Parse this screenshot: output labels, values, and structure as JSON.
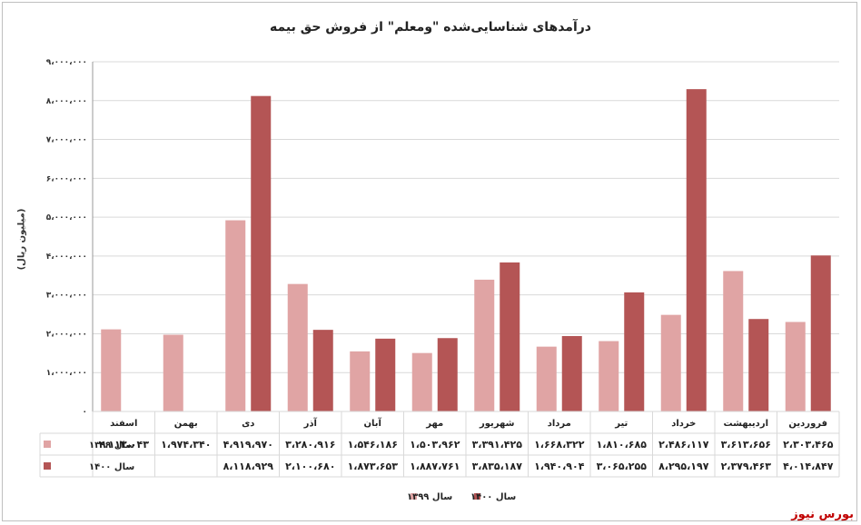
{
  "title": "درآمدهای شناسایی‌شده \"ومعلم\" از فروش حق بیمه",
  "brand": "بورس نیوز",
  "colors": {
    "s1399": "#e0a4a4",
    "s1400": "#b45555",
    "grid": "#d9d9d9",
    "axis": "#999999"
  },
  "chart_data": {
    "type": "bar",
    "title": "درآمدهای شناسایی‌شده \"ومعلم\" از فروش حق بیمه",
    "ylabel": "(میلیون ریال)",
    "xlabel": "",
    "ylim": [
      0,
      9000000
    ],
    "yticks": [
      0,
      1000000,
      2000000,
      3000000,
      4000000,
      5000000,
      6000000,
      7000000,
      8000000,
      9000000
    ],
    "ytick_labels": [
      "۰",
      "۱،۰۰۰،۰۰۰",
      "۲،۰۰۰،۰۰۰",
      "۳،۰۰۰،۰۰۰",
      "۴،۰۰۰،۰۰۰",
      "۵،۰۰۰،۰۰۰",
      "۶،۰۰۰،۰۰۰",
      "۷،۰۰۰،۰۰۰",
      "۸،۰۰۰،۰۰۰",
      "۹،۰۰۰،۰۰۰"
    ],
    "grid": true,
    "legend": "bottom",
    "categories": [
      "فروردین",
      "اردیبهشت",
      "خرداد",
      "تیر",
      "مرداد",
      "شهریور",
      "مهر",
      "آبان",
      "آذر",
      "دی",
      "بهمن",
      "اسفند"
    ],
    "series": [
      {
        "name": "سال ۱۳۹۹",
        "color": "#e0a4a4",
        "values": [
          2303465,
          3613656,
          2486117,
          1810685,
          1668322,
          3391425,
          1503962,
          1546186,
          3280916,
          4919970,
          1974340,
          2113043
        ],
        "labels": [
          "۲،۳۰۳،۴۶۵",
          "۳،۶۱۳،۶۵۶",
          "۲،۴۸۶،۱۱۷",
          "۱،۸۱۰،۶۸۵",
          "۱،۶۶۸،۳۲۲",
          "۳،۳۹۱،۴۲۵",
          "۱،۵۰۳،۹۶۲",
          "۱،۵۴۶،۱۸۶",
          "۳،۲۸۰،۹۱۶",
          "۴،۹۱۹،۹۷۰",
          "۱،۹۷۴،۳۴۰",
          "۲،۱۱۳،۰۴۳"
        ]
      },
      {
        "name": "سال ۱۴۰۰",
        "color": "#b45555",
        "values": [
          4014847,
          2379463,
          8295197,
          3065255,
          1940904,
          3835187,
          1887761,
          1873653,
          2100680,
          8118929,
          null,
          null
        ],
        "labels": [
          "۴،۰۱۴،۸۴۷",
          "۲،۳۷۹،۴۶۳",
          "۸،۲۹۵،۱۹۷",
          "۳،۰۶۵،۲۵۵",
          "۱،۹۴۰،۹۰۴",
          "۳،۸۳۵،۱۸۷",
          "۱،۸۸۷،۷۶۱",
          "۱،۸۷۳،۶۵۳",
          "۲،۱۰۰،۶۸۰",
          "۸،۱۱۸،۹۲۹",
          "",
          ""
        ]
      }
    ]
  }
}
